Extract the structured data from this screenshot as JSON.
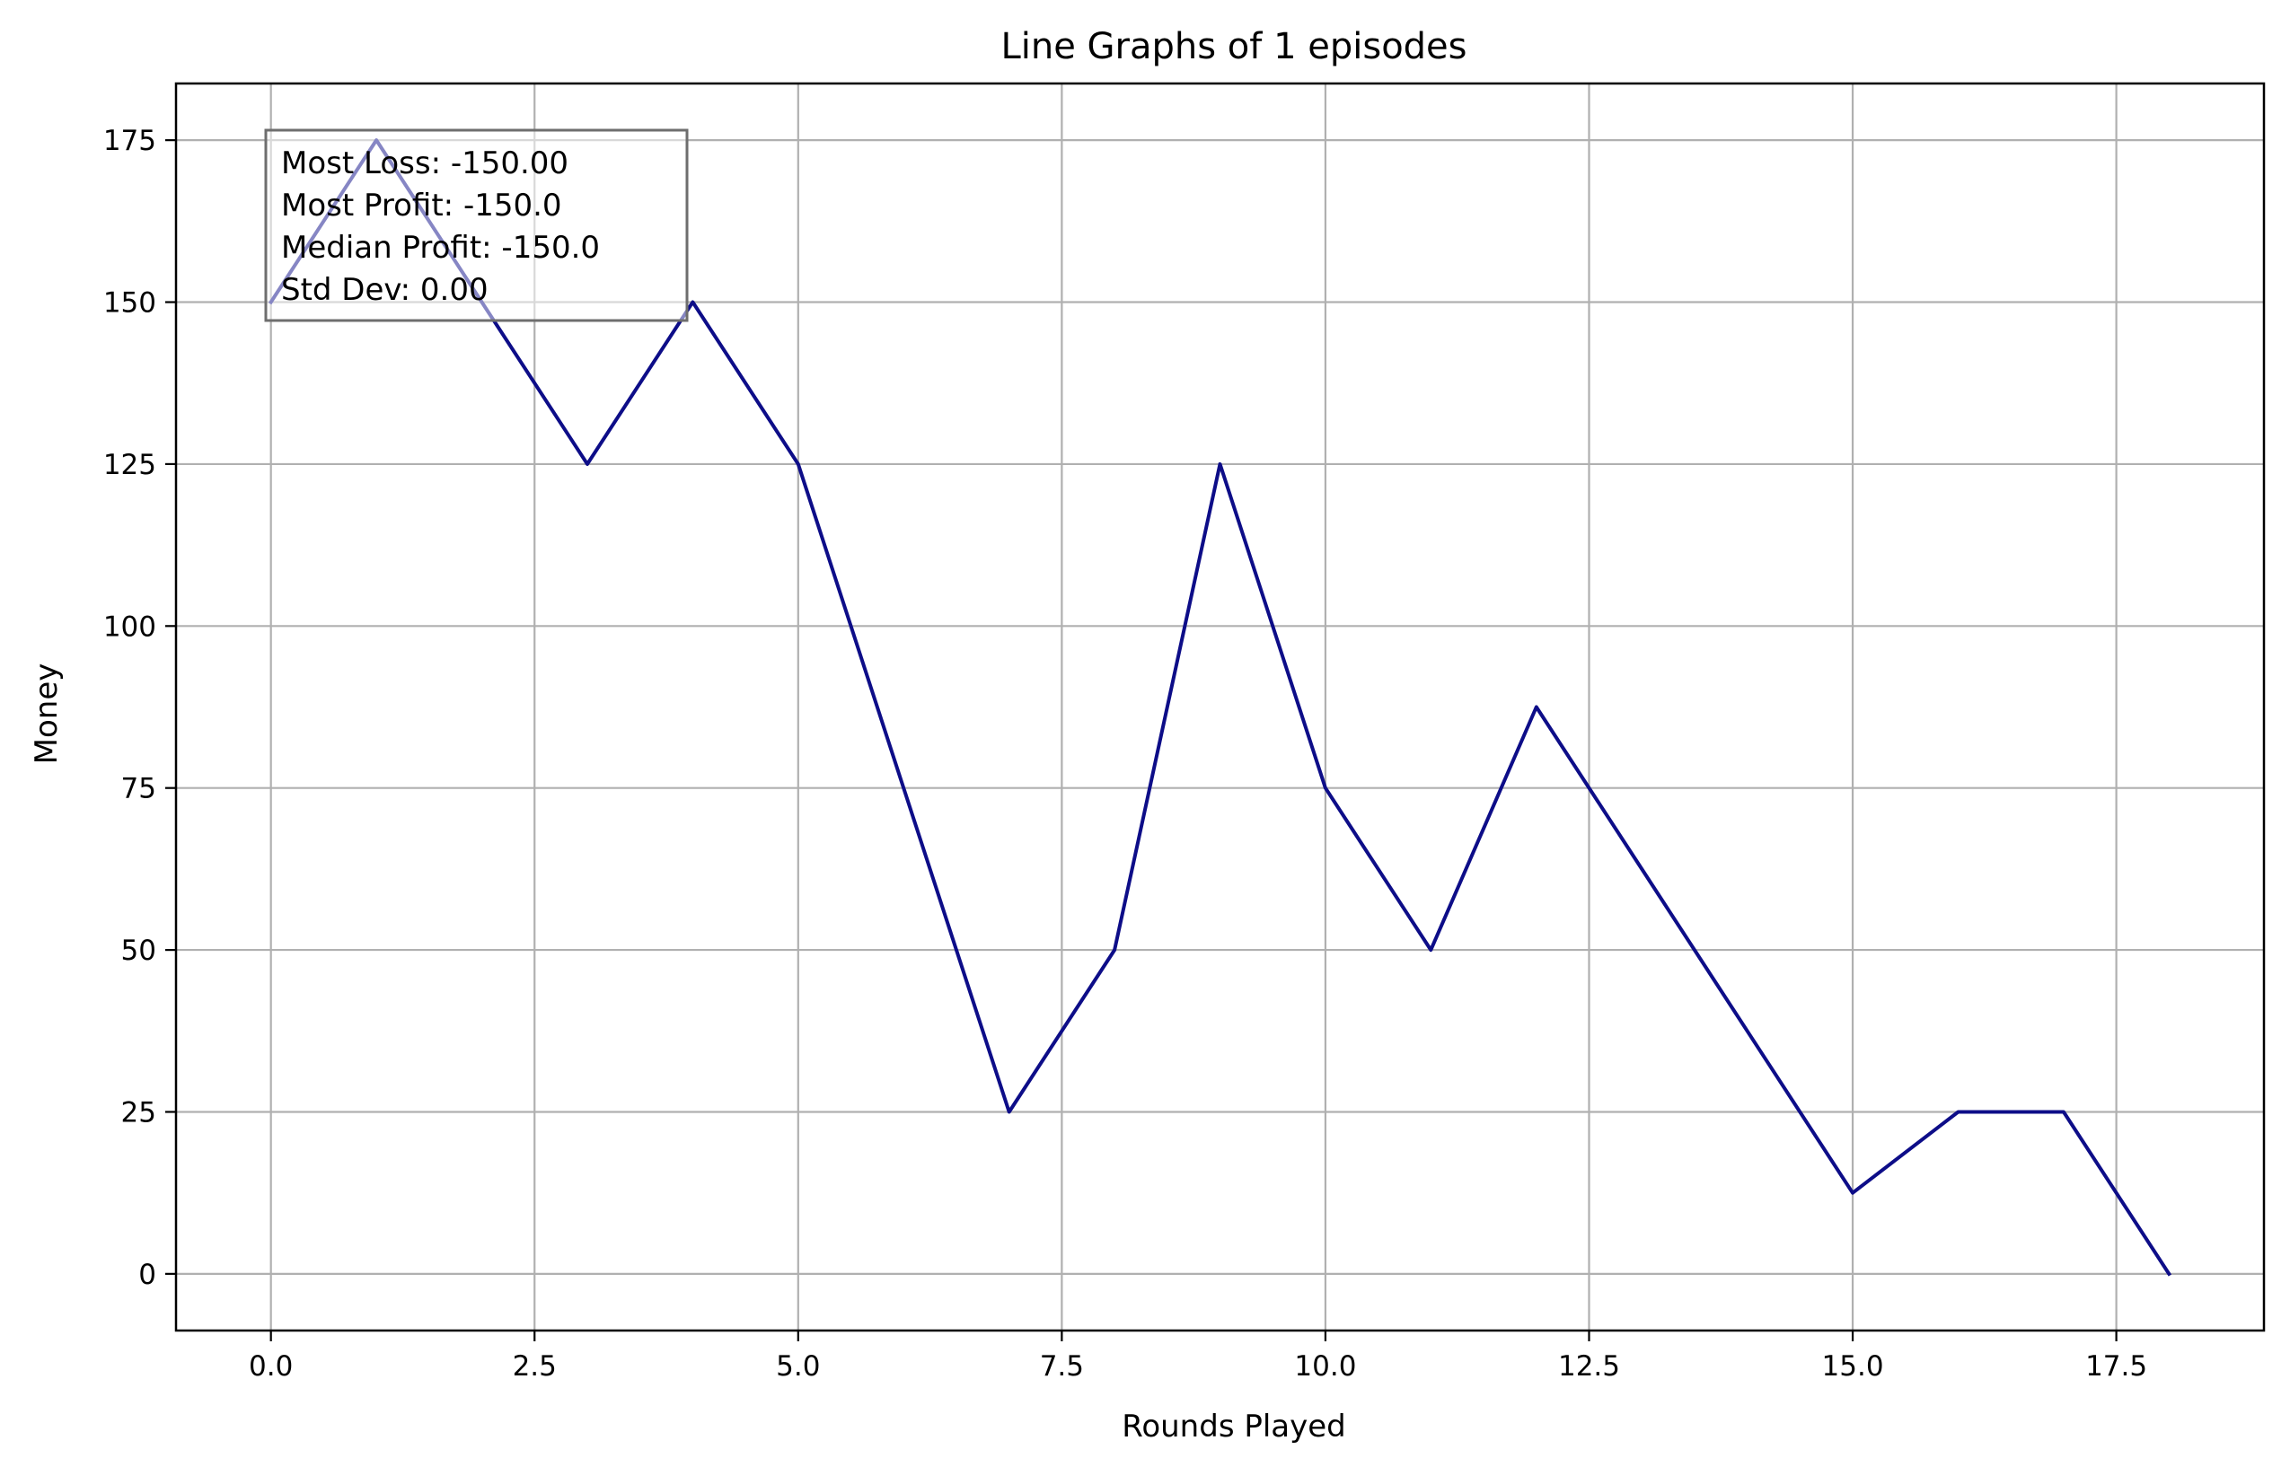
{
  "chart_data": {
    "type": "line",
    "title": "Line Graphs of 1 episodes",
    "xlabel": "Rounds Played",
    "ylabel": "Money",
    "xlim": [
      -0.9,
      18.9
    ],
    "ylim": [
      -8.75,
      183.75
    ],
    "xticks": [
      0.0,
      2.5,
      5.0,
      7.5,
      10.0,
      12.5,
      15.0,
      17.5
    ],
    "xtick_labels": [
      "0.0",
      "2.5",
      "5.0",
      "7.5",
      "10.0",
      "12.5",
      "15.0",
      "17.5"
    ],
    "yticks": [
      0,
      25,
      50,
      75,
      100,
      125,
      150,
      175
    ],
    "ytick_labels": [
      "0",
      "25",
      "50",
      "75",
      "100",
      "125",
      "150",
      "175"
    ],
    "grid": true,
    "series": [
      {
        "color": "#0d0d88",
        "x": [
          0,
          1,
          2,
          3,
          4,
          5,
          6,
          7,
          8,
          9,
          10,
          11,
          12,
          13,
          14,
          15,
          16,
          17,
          18
        ],
        "y": [
          150,
          175,
          150,
          125,
          150,
          125,
          75,
          25,
          50,
          125,
          75,
          50,
          87.5,
          62.5,
          37.5,
          12.5,
          25,
          25,
          0
        ]
      }
    ],
    "annotation": {
      "position": "top-left",
      "lines": [
        "Most Loss: -150.00",
        "Most Profit: -150.0",
        "Median Profit: -150.0",
        "Std Dev: 0.00"
      ]
    }
  }
}
